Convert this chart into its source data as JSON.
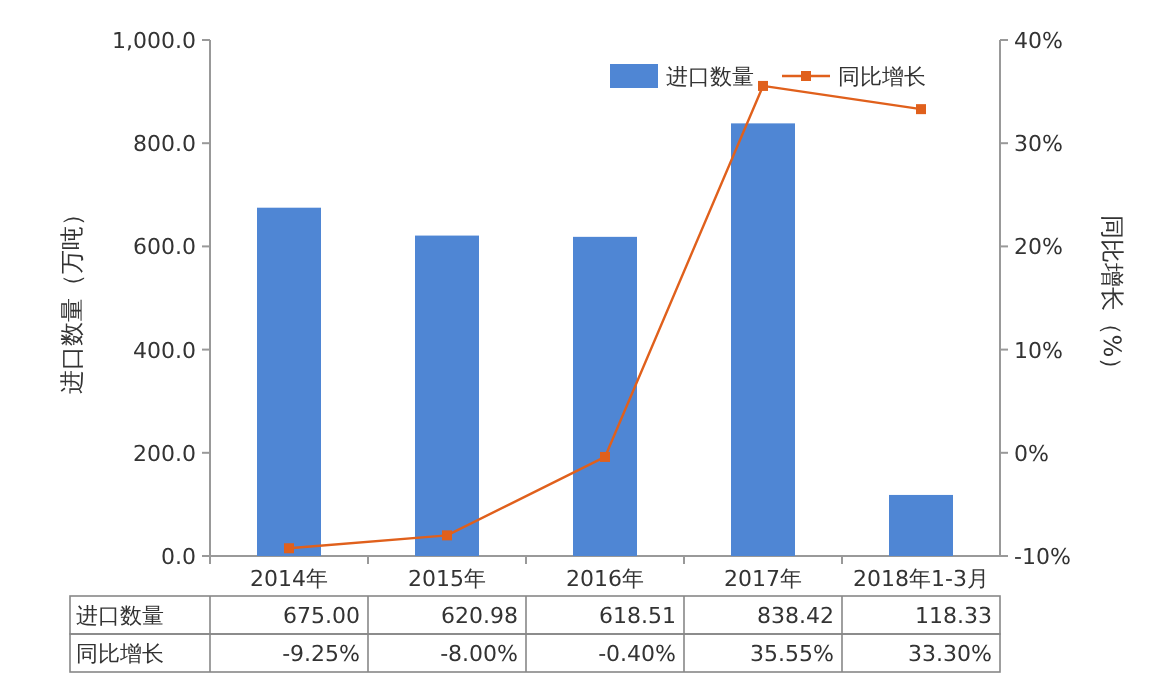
{
  "chart_data": {
    "type": "bar",
    "ylabel": "进口数量（万吨）",
    "y2label": "同比增长（%）",
    "legend": "top right",
    "categories": [
      "2014年",
      "2015年",
      "2016年",
      "2017年",
      "2018年1-3月"
    ],
    "series": [
      {
        "name": "进口数量",
        "color": "#4f86d4",
        "values": [
          675.0,
          620.98,
          618.51,
          838.42,
          118.33
        ],
        "value_labels": [
          "675.00",
          "620.98",
          "618.51",
          "838.42",
          "118.33"
        ]
      },
      {
        "name": "同比增长",
        "type": "line",
        "axis": "y2",
        "color": "#e0601c",
        "marker": "square",
        "values": [
          -9.25,
          -8.0,
          -0.4,
          35.55,
          33.3
        ],
        "value_labels": [
          "-9.25%",
          "-8.00%",
          "-0.40%",
          "35.55%",
          "33.30%"
        ]
      }
    ],
    "ylim": [
      0,
      1000
    ],
    "yticks": [
      {
        "value": 0,
        "label": "0.0"
      },
      {
        "value": 200,
        "label": "200.0"
      },
      {
        "value": 400,
        "label": "400.0"
      },
      {
        "value": 600,
        "label": "600.0"
      },
      {
        "value": 800,
        "label": "800.0"
      },
      {
        "value": 1000,
        "label": "1,000.0"
      }
    ],
    "y2lim": [
      -10,
      40
    ],
    "y2ticks": [
      {
        "value": -10,
        "label": "-10%"
      },
      {
        "value": 0,
        "label": "0%"
      },
      {
        "value": 10,
        "label": "10%"
      },
      {
        "value": 20,
        "label": "20%"
      },
      {
        "value": 30,
        "label": "30%"
      },
      {
        "value": 40,
        "label": "40%"
      }
    ]
  }
}
